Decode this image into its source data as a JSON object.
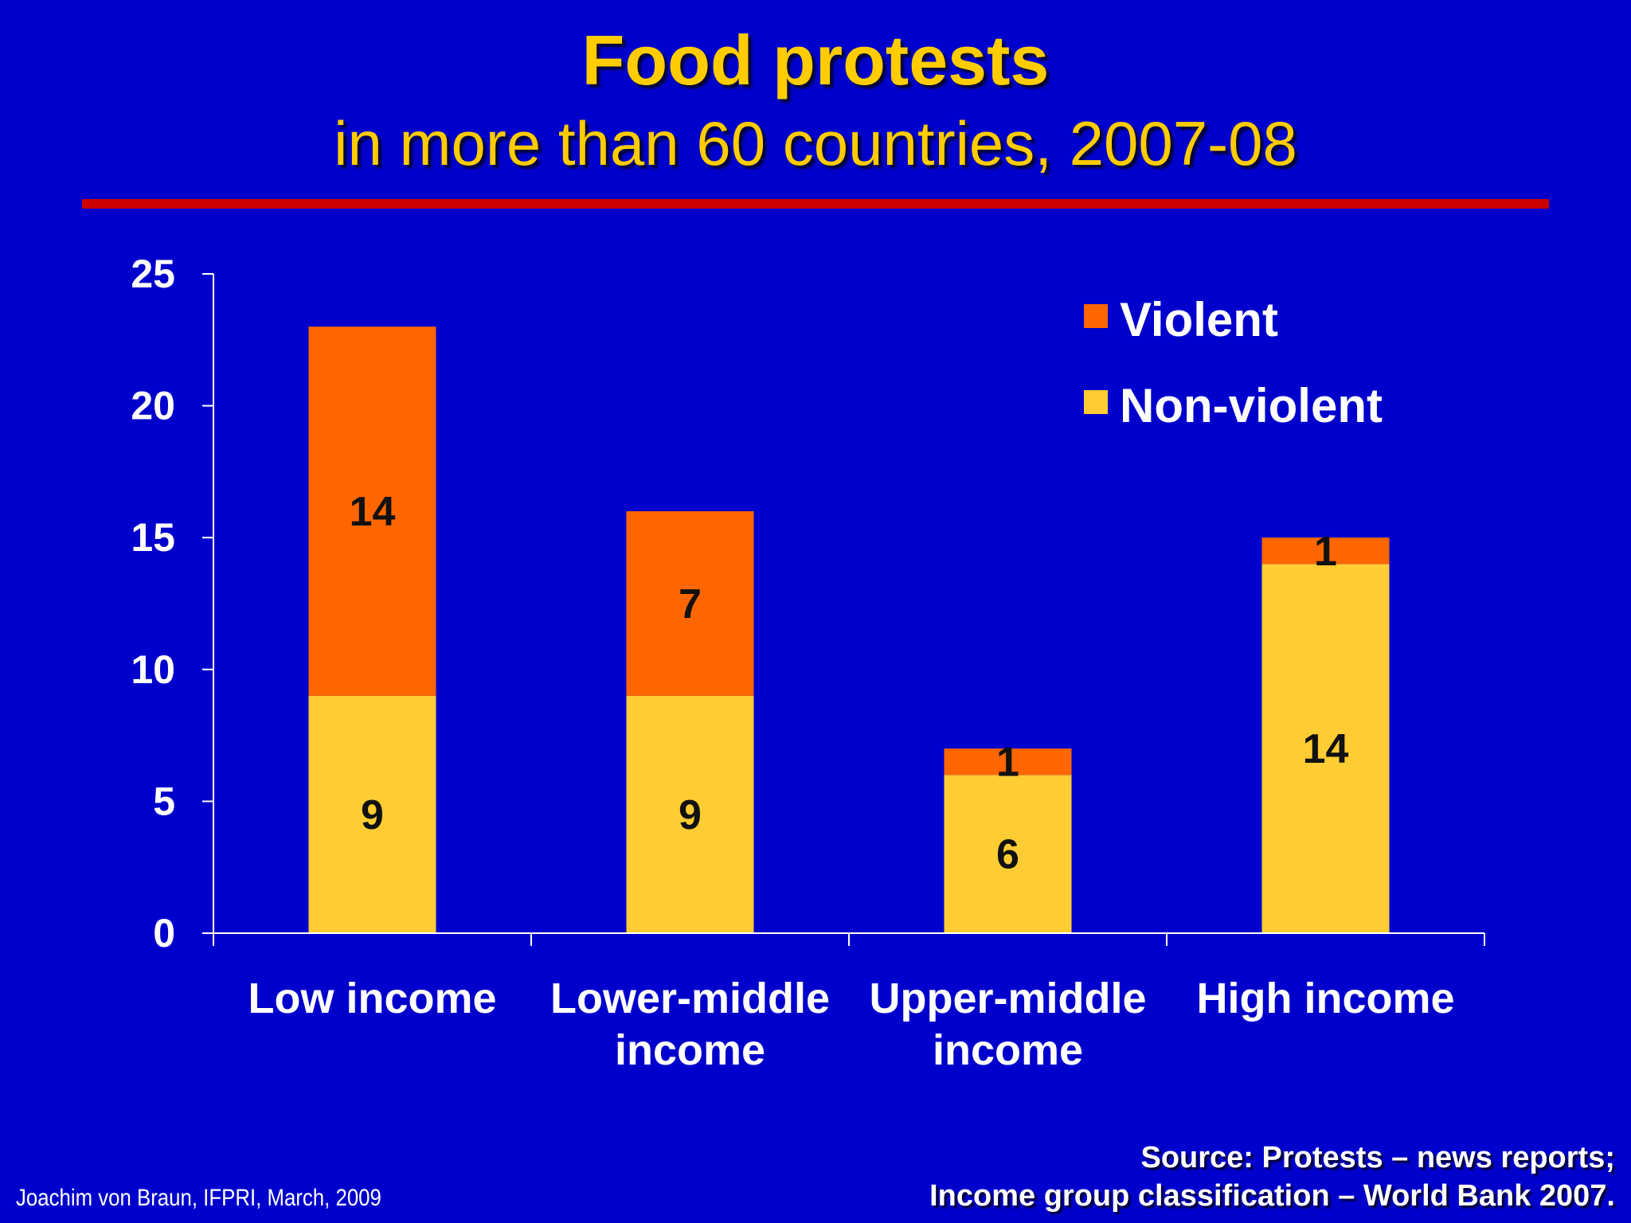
{
  "slide": {
    "title": "Food protests",
    "subtitle": "in more than 60 countries, 2007-08",
    "author_note": "Joachim von Braun, IFPRI, March, 2009",
    "source_line1": "Source:  Protests – news reports;",
    "source_line2": "Income group classification – World Bank 2007."
  },
  "colors": {
    "background": "#0000cc",
    "title": "#ffcc00",
    "rule": "#cc0000",
    "violent": "#ff6600",
    "non_violent": "#ffcc33"
  },
  "chart_data": {
    "type": "bar",
    "stacked": true,
    "title": "",
    "xlabel": "",
    "ylabel": "",
    "ylim": [
      0,
      25
    ],
    "yticks": [
      0,
      5,
      10,
      15,
      20,
      25
    ],
    "categories": [
      [
        "Low income"
      ],
      [
        "Lower-middle",
        "income"
      ],
      [
        "Upper-middle",
        "income"
      ],
      [
        "High income"
      ]
    ],
    "series": [
      {
        "name": "Non-violent",
        "values": [
          9,
          9,
          6,
          14
        ],
        "color": "#ffcc33"
      },
      {
        "name": "Violent",
        "values": [
          14,
          7,
          1,
          1
        ],
        "color": "#ff6600"
      }
    ],
    "legend_order": [
      "Violent",
      "Non-violent"
    ],
    "legend_position": "top-right",
    "grid": false
  }
}
